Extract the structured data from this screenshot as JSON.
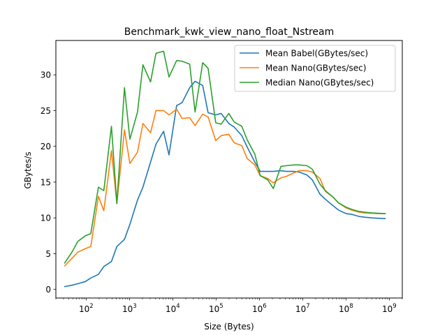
{
  "chart_data": {
    "type": "line",
    "title": "Benchmark_kwk_view_nano_float_Nstream",
    "xlabel": "Size (Bytes)",
    "ylabel": "GBytes/s",
    "xscale": "log",
    "xlim": [
      20,
      2000000000
    ],
    "ylim": [
      -1.2,
      34.8
    ],
    "yticks": [
      0,
      5,
      10,
      15,
      20,
      25,
      30
    ],
    "ytick_labels": [
      "0",
      "5",
      "10",
      "15",
      "20",
      "25",
      "30"
    ],
    "xticks": [
      100,
      1000,
      10000,
      100000,
      1000000,
      10000000,
      100000000,
      1000000000
    ],
    "xtick_bases": [
      "10",
      "10",
      "10",
      "10",
      "10",
      "10",
      "10",
      "10"
    ],
    "xtick_exponents": [
      "2",
      "3",
      "4",
      "5",
      "6",
      "7",
      "8",
      "9"
    ],
    "legend_position": "upper-right",
    "grid": false,
    "x": [
      32,
      48,
      64,
      96,
      128,
      192,
      256,
      384,
      512,
      768,
      1024,
      1536,
      2048,
      3072,
      4096,
      6144,
      8192,
      12288,
      16384,
      24576,
      32768,
      49152,
      65536,
      98304,
      131072,
      196608,
      262144,
      393216,
      524288,
      786432,
      1048576,
      1572864,
      2097152,
      3145728,
      4194304,
      6291456,
      8388608,
      12582912,
      16777216,
      25165824,
      33554432,
      50331648,
      67108864,
      100663296,
      134217728,
      201326592,
      268435456,
      402653184,
      536870912,
      805306368
    ],
    "series": [
      {
        "name": "Mean Babel(GBytes/sec)",
        "color": "#1f77b4",
        "values": [
          0.4,
          0.6,
          0.8,
          1.1,
          1.6,
          2.1,
          3.2,
          3.9,
          6.0,
          7.0,
          9.1,
          12.5,
          14.3,
          17.8,
          20.3,
          22.1,
          18.8,
          25.7,
          26.1,
          28.2,
          29.1,
          28.5,
          24.7,
          24.4,
          24.6,
          23.2,
          22.7,
          21.5,
          19.9,
          17.8,
          16.5,
          16.5,
          16.5,
          16.6,
          16.5,
          16.5,
          16.4,
          16.0,
          15.3,
          13.3,
          12.6,
          11.7,
          11.1,
          10.6,
          10.5,
          10.2,
          10.1,
          10.0,
          9.95,
          9.9
        ]
      },
      {
        "name": "Mean Nano(GBytes/sec)",
        "color": "#ff7f0e",
        "values": [
          3.3,
          4.4,
          5.2,
          5.7,
          6.0,
          13.0,
          11.0,
          19.4,
          12.0,
          22.3,
          17.6,
          19.2,
          23.2,
          21.9,
          25.0,
          25.0,
          24.4,
          25.2,
          23.9,
          24.0,
          22.9,
          24.5,
          24.1,
          20.8,
          21.5,
          21.7,
          20.5,
          20.1,
          18.3,
          17.4,
          15.9,
          15.5,
          14.9,
          15.6,
          15.8,
          16.3,
          16.6,
          16.6,
          16.4,
          15.5,
          13.7,
          12.9,
          12.1,
          11.4,
          11.1,
          10.8,
          10.7,
          10.65,
          10.6,
          10.6
        ]
      },
      {
        "name": "Median Nano(GBytes/sec)",
        "color": "#2ca02c",
        "values": [
          3.7,
          5.3,
          6.7,
          7.5,
          7.8,
          14.3,
          13.8,
          22.8,
          12.0,
          28.2,
          21.0,
          24.8,
          31.4,
          29.0,
          33.0,
          33.3,
          29.7,
          32.0,
          31.9,
          31.5,
          24.8,
          31.7,
          30.9,
          23.3,
          23.1,
          24.6,
          23.4,
          22.8,
          20.9,
          18.9,
          15.9,
          15.3,
          14.1,
          17.2,
          17.3,
          17.4,
          17.4,
          17.3,
          16.8,
          14.7,
          13.8,
          12.9,
          12.1,
          11.5,
          11.2,
          10.9,
          10.8,
          10.7,
          10.65,
          10.6
        ]
      }
    ]
  }
}
